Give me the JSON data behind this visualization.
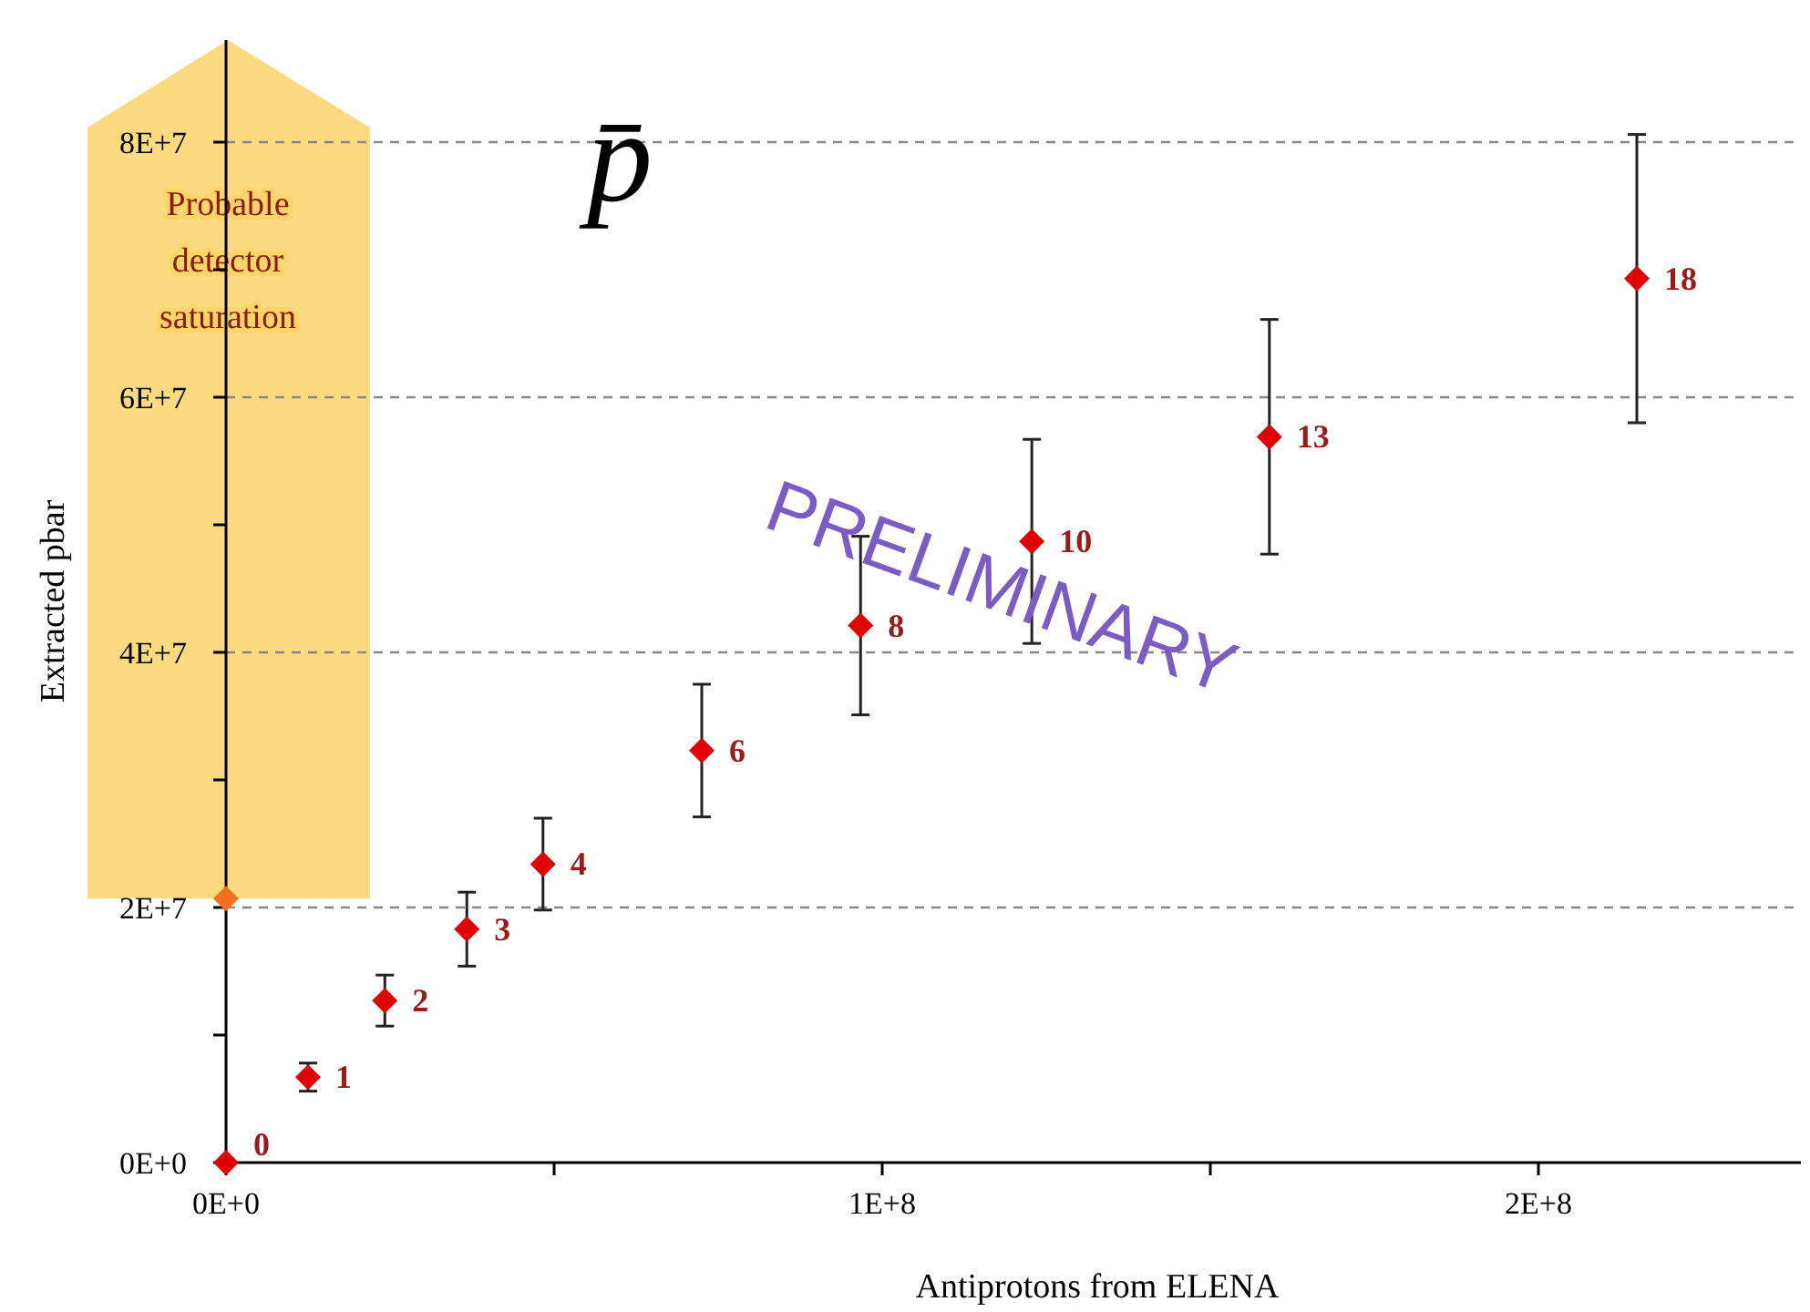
{
  "chart_data": {
    "type": "scatter",
    "title": "p̄",
    "xlabel": "Antiprotons from ELENA",
    "ylabel": "Extracted pbar",
    "xlim": [
      0,
      240000000
    ],
    "xticks": [
      {
        "value": 0,
        "label": "0E+0"
      },
      {
        "value": 50000000,
        "label": null
      },
      {
        "value": 100000000,
        "label": "1E+8"
      },
      {
        "value": 150000000,
        "label": null
      },
      {
        "value": 200000000,
        "label": "2E+8"
      }
    ],
    "ylim": [
      0,
      88000000
    ],
    "yticks": [
      {
        "value": 0,
        "label": "0E+0"
      },
      {
        "value": 10000000,
        "label": null
      },
      {
        "value": 20000000,
        "label": "2E+7"
      },
      {
        "value": 30000000,
        "label": null
      },
      {
        "value": 40000000,
        "label": "4E+7"
      },
      {
        "value": 50000000,
        "label": null
      },
      {
        "value": 60000000,
        "label": "6E+7"
      },
      {
        "value": 70000000,
        "label": null
      },
      {
        "value": 80000000,
        "label": "8E+7"
      }
    ],
    "grid": "y",
    "marker": "diamond",
    "series": [
      {
        "color": "#e00000",
        "x": [
          0,
          12500000,
          24200000,
          36700000,
          48300000,
          72500000,
          96700000,
          122800000,
          159000000,
          215000000
        ],
        "values": [
          0,
          6700000,
          12700000,
          18300000,
          23400000,
          32300000,
          42100000,
          48700000,
          56900000,
          69300000
        ],
        "errors": [
          null,
          1100000,
          2000000,
          2900000,
          3600000,
          5200000,
          7000000,
          8000000,
          9200000,
          11300000
        ]
      },
      {
        "color": "#f07020",
        "x": [
          0
        ],
        "values": [
          20700000
        ]
      }
    ],
    "annotations": [
      "Probable detector saturation",
      "PRELIMINARY",
      {
        "text": "0",
        "x": 0,
        "y": 0
      },
      {
        "text": "1",
        "x": 12500000,
        "y": 6700000
      },
      {
        "text": "2",
        "x": 24200000,
        "y": 12700000
      },
      {
        "text": "3",
        "x": 36700000,
        "y": 18300000
      },
      {
        "text": "4",
        "x": 48300000,
        "y": 23400000
      },
      {
        "text": "6",
        "x": 72500000,
        "y": 32300000
      },
      {
        "text": "8",
        "x": 96700000,
        "y": 42100000
      },
      {
        "text": "10",
        "x": 122800000,
        "y": 48700000
      },
      {
        "text": "13",
        "x": 159000000,
        "y": 56900000
      },
      {
        "text": "18",
        "x": 215000000,
        "y": 69300000
      }
    ]
  }
}
